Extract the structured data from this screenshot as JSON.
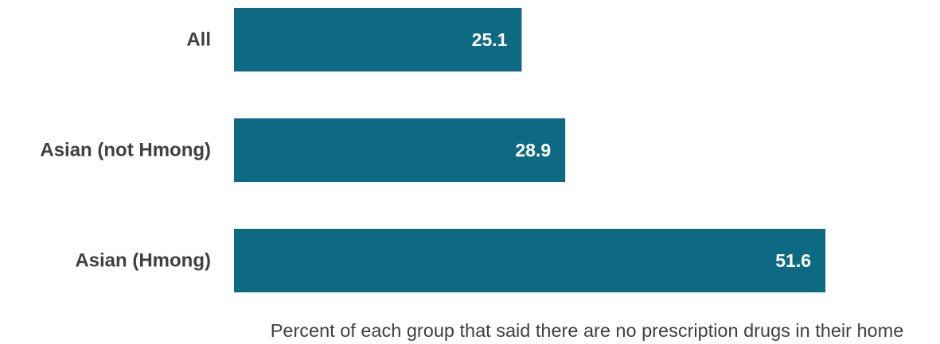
{
  "chart_data": {
    "type": "bar",
    "orientation": "horizontal",
    "categories": [
      "All",
      "Asian (not Hmong)",
      "Asian (Hmong)"
    ],
    "values": [
      25.1,
      28.9,
      51.6
    ],
    "value_labels": [
      "25.1",
      "28.9",
      "51.6"
    ],
    "title": "",
    "xlabel": "Percent of each group that said there are no prescription drugs in their home",
    "ylabel": "",
    "xlim": [
      0,
      61.5
    ],
    "grid": false,
    "legend": "none",
    "colors": {
      "bar": "#0E6A82",
      "category_text": "#404040",
      "value_text": "#FFFFFF",
      "axis_label_text": "#404040"
    }
  }
}
